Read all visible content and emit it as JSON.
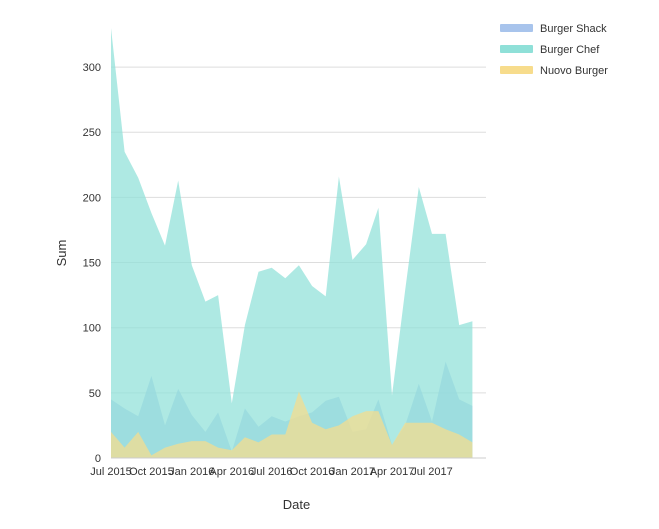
{
  "chart_data": {
    "type": "area",
    "xlabel": "Date",
    "ylabel": "Sum",
    "ylim": [
      0,
      330
    ],
    "yticks": [
      0,
      50,
      100,
      150,
      200,
      250,
      300
    ],
    "xlim": [
      "2015-07-01",
      "2017-11-01"
    ],
    "xticks": [
      {
        "date": "2015-07-01",
        "label": "Jul 2015"
      },
      {
        "date": "2015-10-01",
        "label": "Oct 2015"
      },
      {
        "date": "2016-01-01",
        "label": "Jan 2016"
      },
      {
        "date": "2016-04-01",
        "label": "Apr 2016"
      },
      {
        "date": "2016-07-01",
        "label": "Jul 2016"
      },
      {
        "date": "2016-10-01",
        "label": "Oct 2016"
      },
      {
        "date": "2017-01-01",
        "label": "Jan 2017"
      },
      {
        "date": "2017-04-01",
        "label": "Apr 2017"
      },
      {
        "date": "2017-07-01",
        "label": "Jul 2017"
      }
    ],
    "grid": true,
    "legend_position": "top-right",
    "x": [
      "2015-07-01",
      "2015-08-01",
      "2015-09-01",
      "2015-10-01",
      "2015-11-01",
      "2015-12-01",
      "2016-01-01",
      "2016-02-01",
      "2016-03-01",
      "2016-04-01",
      "2016-05-01",
      "2016-06-01",
      "2016-07-01",
      "2016-08-01",
      "2016-09-01",
      "2016-10-01",
      "2016-11-01",
      "2016-12-01",
      "2017-01-01",
      "2017-02-01",
      "2017-03-01",
      "2017-04-01",
      "2017-05-01",
      "2017-06-01",
      "2017-07-01",
      "2017-08-01",
      "2017-09-01",
      "2017-10-01"
    ],
    "series": [
      {
        "name": "Burger Shack",
        "color": "#a8c4ec",
        "values": [
          45,
          38,
          32,
          63,
          25,
          53,
          33,
          20,
          35,
          5,
          38,
          24,
          32,
          28,
          32,
          35,
          44,
          47,
          20,
          22,
          45,
          10,
          25,
          57,
          28,
          74,
          45,
          40
        ]
      },
      {
        "name": "Burger Chef",
        "color": "#8fe0d8",
        "values": [
          330,
          235,
          215,
          188,
          163,
          213,
          148,
          120,
          125,
          42,
          102,
          143,
          146,
          138,
          148,
          132,
          124,
          216,
          152,
          164,
          192,
          48,
          129,
          208,
          172,
          172,
          102,
          105
        ]
      },
      {
        "name": "Nuovo Burger",
        "color": "#f7dc8c",
        "values": [
          20,
          8,
          20,
          2,
          8,
          11,
          13,
          13,
          8,
          6,
          16,
          12,
          18,
          18,
          51,
          27,
          22,
          25,
          32,
          36,
          36,
          10,
          27,
          27,
          27,
          22,
          18,
          12
        ]
      }
    ]
  }
}
